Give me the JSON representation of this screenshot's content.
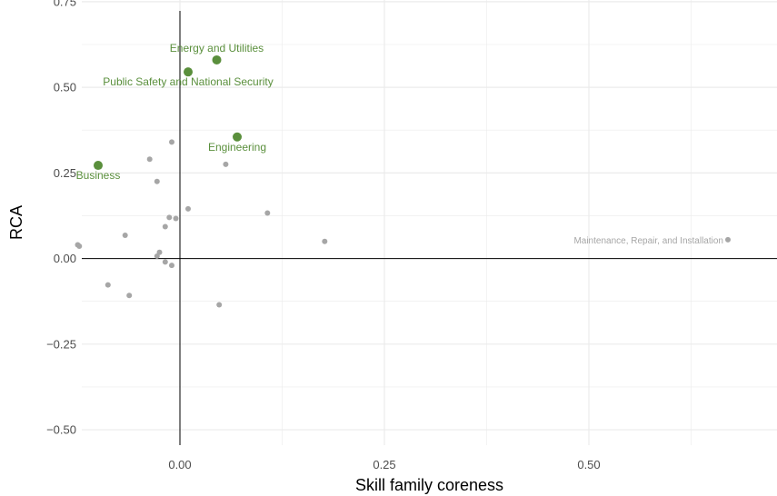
{
  "chart_data": {
    "type": "scatter",
    "xlabel": "Skill family coreness",
    "ylabel": "RCA",
    "xlim": [
      -0.12,
      0.73
    ],
    "ylim": [
      -0.545,
      0.755
    ],
    "x_ticks": [
      0.0,
      0.25,
      0.5
    ],
    "x_tick_labels": [
      "0.00",
      "0.25",
      "0.50"
    ],
    "y_ticks": [
      -0.5,
      -0.25,
      0.0,
      0.25,
      0.5,
      0.75
    ],
    "y_tick_labels": [
      "−0.50",
      "−0.25",
      "0.00",
      "0.25",
      "0.50",
      "0.75"
    ],
    "grid": true,
    "colors": {
      "highlight": "#5a8f3c",
      "other": "#a6a6a6",
      "grid": "#ebebeb",
      "axis": "#000000"
    },
    "highlighted_points": [
      {
        "x": 0.045,
        "y": 0.58,
        "label": "Energy and Utilities",
        "label_position": "above"
      },
      {
        "x": 0.01,
        "y": 0.545,
        "label": "Public Safety and National Security",
        "label_position": "below"
      },
      {
        "x": 0.07,
        "y": 0.355,
        "label": "Engineering",
        "label_position": "below"
      },
      {
        "x": -0.1,
        "y": 0.272,
        "label": "Business",
        "label_position": "below"
      }
    ],
    "other_points": [
      {
        "x": 0.67,
        "y": 0.055,
        "label": "Maintenance, Repair, and Installation",
        "label_position": "left"
      },
      {
        "x": -0.01,
        "y": 0.34
      },
      {
        "x": -0.037,
        "y": 0.29
      },
      {
        "x": 0.056,
        "y": 0.275
      },
      {
        "x": -0.028,
        "y": 0.225
      },
      {
        "x": 0.01,
        "y": 0.145
      },
      {
        "x": 0.107,
        "y": 0.133
      },
      {
        "x": -0.013,
        "y": 0.12
      },
      {
        "x": -0.005,
        "y": 0.117
      },
      {
        "x": -0.018,
        "y": 0.093
      },
      {
        "x": -0.067,
        "y": 0.068
      },
      {
        "x": 0.177,
        "y": 0.05
      },
      {
        "x": -0.125,
        "y": 0.04
      },
      {
        "x": -0.123,
        "y": 0.036
      },
      {
        "x": -0.025,
        "y": 0.018
      },
      {
        "x": -0.028,
        "y": 0.007
      },
      {
        "x": -0.018,
        "y": -0.01
      },
      {
        "x": -0.01,
        "y": -0.02
      },
      {
        "x": -0.088,
        "y": -0.077
      },
      {
        "x": -0.062,
        "y": -0.108
      },
      {
        "x": 0.048,
        "y": -0.135
      }
    ]
  }
}
